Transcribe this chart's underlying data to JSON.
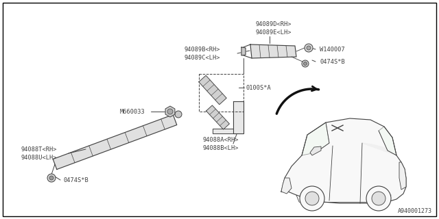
{
  "background_color": "#ffffff",
  "border_color": "#000000",
  "diagram_id": "A940001273",
  "font_size": 6.2,
  "line_color": "#404040",
  "labels": {
    "94089D_RH": "94089D<RH>",
    "94089E_LH": "94089E<LH>",
    "94089B_RH": "94089B<RH>",
    "94089C_LH": "94089C<LH>",
    "0100S_A": "0100S*A",
    "M660033": "M660033",
    "94088T_RH": "94088T<RH>",
    "94088U_LH": "94088U<LH>",
    "0474S_B1": "0474S*B",
    "94088A_RH": "94088A<RH>",
    "94088B_LH": "94088B<LH>",
    "W140007": "W140007",
    "0474S_B2": "0474S*B"
  }
}
